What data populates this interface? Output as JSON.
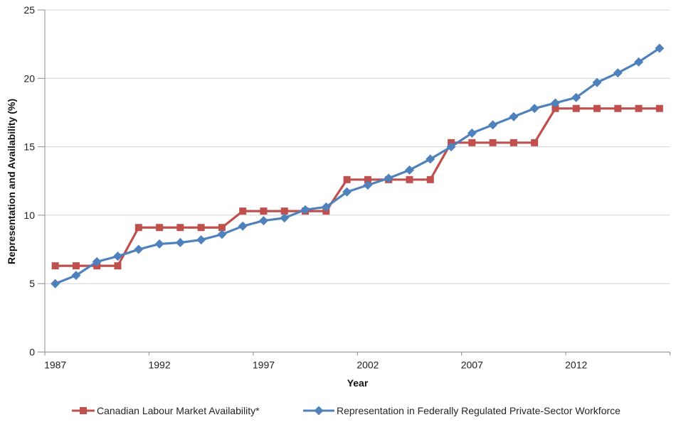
{
  "chart_data": {
    "type": "line",
    "xlabel": "Year",
    "ylabel": "Representation and Availability (%)",
    "ylim": [
      0,
      25
    ],
    "yticks": [
      0,
      5,
      10,
      15,
      20,
      25
    ],
    "xtick_years": [
      1987,
      1992,
      1997,
      2002,
      2007,
      2012
    ],
    "grid": "horizontal",
    "legend_position": "bottom",
    "x": [
      1987,
      1988,
      1989,
      1990,
      1991,
      1992,
      1993,
      1994,
      1995,
      1996,
      1997,
      1998,
      1999,
      2000,
      2001,
      2002,
      2003,
      2004,
      2005,
      2006,
      2007,
      2008,
      2009,
      2010,
      2011,
      2012,
      2013,
      2014,
      2015,
      2016
    ],
    "series": [
      {
        "name": "Canadian Labour Market Availability*",
        "color": "#C0504D",
        "marker": "square",
        "values": [
          6.3,
          6.3,
          6.3,
          6.3,
          9.1,
          9.1,
          9.1,
          9.1,
          9.1,
          10.3,
          10.3,
          10.3,
          10.3,
          10.3,
          12.6,
          12.6,
          12.6,
          12.6,
          12.6,
          15.3,
          15.3,
          15.3,
          15.3,
          15.3,
          17.8,
          17.8,
          17.8,
          17.8,
          17.8,
          17.8
        ]
      },
      {
        "name": "Representation in Federally Regulated Private-Sector Workforce",
        "color": "#4F81BD",
        "marker": "diamond",
        "values": [
          5.0,
          5.6,
          6.6,
          7.0,
          7.5,
          7.9,
          8.0,
          8.2,
          8.6,
          9.2,
          9.6,
          9.8,
          10.4,
          10.6,
          11.7,
          12.2,
          12.7,
          13.3,
          14.1,
          15.0,
          16.0,
          16.6,
          17.2,
          17.8,
          18.2,
          18.6,
          19.7,
          20.4,
          21.2,
          22.2
        ]
      }
    ],
    "axis_colors": {
      "axis_line": "#8E8E8E",
      "gridline": "#D2D2D2"
    }
  }
}
